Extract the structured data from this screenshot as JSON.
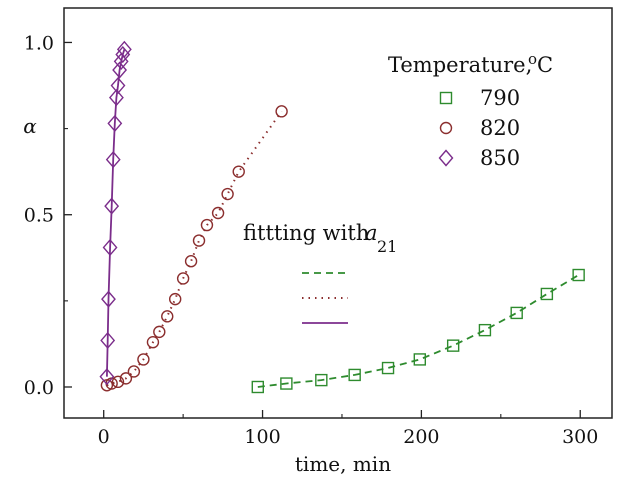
{
  "chart_data": {
    "type": "scatter",
    "xlabel": "time, min",
    "ylabel": "α",
    "xlim": [
      -25,
      320
    ],
    "ylim": [
      -0.09,
      1.1
    ],
    "x_ticks": [
      "0",
      "100",
      "200",
      "300"
    ],
    "y_ticks": [
      "0.0",
      "0.5",
      "1.0"
    ],
    "legend_title": "Temperature,",
    "legend_title_unit": "oC",
    "legend_position": "top-right",
    "fit_label": "fittting with",
    "fit_label_symbol": "a",
    "fit_label_subscript": "21",
    "series": [
      {
        "name": "790",
        "marker": "square",
        "color": "#2e8b2e",
        "fit_style": "dashed",
        "x": [
          97,
          115,
          137,
          158,
          179,
          199,
          220,
          240,
          260,
          279,
          299
        ],
        "y": [
          0.0,
          0.01,
          0.02,
          0.035,
          0.055,
          0.08,
          0.12,
          0.165,
          0.215,
          0.27,
          0.325
        ]
      },
      {
        "name": "820",
        "marker": "circle",
        "color": "#8b2e2e",
        "fit_style": "dotted",
        "x": [
          2,
          5,
          9,
          14,
          19,
          25,
          31,
          35,
          40,
          45,
          50,
          55,
          60,
          65,
          72,
          78,
          85,
          112
        ],
        "y": [
          0.005,
          0.01,
          0.015,
          0.025,
          0.045,
          0.08,
          0.13,
          0.16,
          0.205,
          0.255,
          0.315,
          0.365,
          0.425,
          0.47,
          0.505,
          0.56,
          0.625,
          0.8
        ]
      },
      {
        "name": "850",
        "marker": "diamond",
        "color": "#7b2d8b",
        "fit_style": "solid",
        "x": [
          2,
          2.5,
          3,
          4,
          5,
          6,
          7,
          8,
          9,
          10,
          11,
          12,
          13
        ],
        "y": [
          0.03,
          0.135,
          0.255,
          0.405,
          0.525,
          0.66,
          0.765,
          0.84,
          0.875,
          0.92,
          0.945,
          0.965,
          0.98
        ]
      }
    ]
  }
}
